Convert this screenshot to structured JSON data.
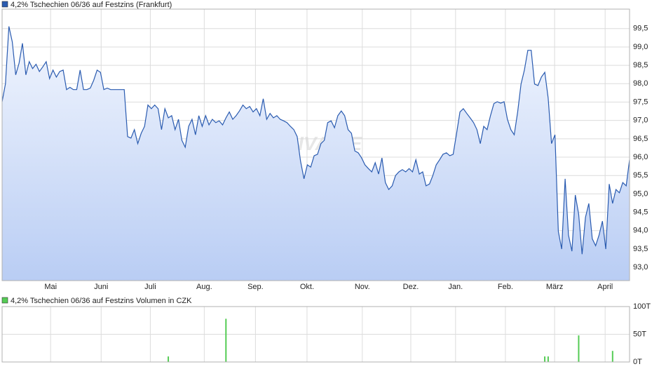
{
  "chart_data": [
    {
      "type": "area",
      "series": [
        {
          "name": "4,2% Tschechien 06/36 auf Festzins (Frankfurt)",
          "color": "#2a5bb0",
          "values": [
            97.51,
            98.0,
            99.56,
            99.14,
            98.24,
            98.56,
            99.1,
            98.24,
            98.6,
            98.41,
            98.53,
            98.33,
            98.46,
            98.6,
            98.14,
            98.37,
            98.18,
            98.33,
            98.37,
            97.84,
            97.9,
            97.84,
            97.84,
            98.37,
            97.84,
            97.84,
            97.88,
            98.09,
            98.37,
            98.31,
            97.84,
            97.88,
            97.84,
            97.84,
            97.84,
            97.84,
            97.84,
            96.56,
            96.52,
            96.75,
            96.37,
            96.65,
            96.84,
            97.42,
            97.32,
            97.42,
            97.32,
            96.75,
            97.32,
            97.07,
            97.13,
            96.75,
            97.03,
            96.46,
            96.27,
            96.84,
            97.03,
            96.61,
            97.13,
            96.84,
            97.13,
            96.88,
            97.03,
            96.94,
            96.99,
            96.88,
            97.07,
            97.23,
            97.03,
            97.13,
            97.26,
            97.42,
            97.32,
            97.38,
            97.23,
            97.32,
            97.13,
            97.59,
            97.03,
            97.19,
            97.07,
            97.13,
            97.03,
            96.99,
            96.94,
            96.84,
            96.75,
            96.56,
            95.89,
            95.41,
            95.79,
            95.73,
            96.04,
            96.08,
            96.37,
            96.46,
            96.94,
            96.99,
            96.8,
            97.13,
            97.26,
            97.13,
            96.75,
            96.65,
            96.17,
            96.12,
            95.98,
            95.79,
            95.69,
            95.6,
            95.85,
            95.54,
            95.98,
            95.31,
            95.12,
            95.22,
            95.5,
            95.6,
            95.66,
            95.6,
            95.69,
            95.6,
            95.93,
            95.54,
            95.6,
            95.22,
            95.27,
            95.5,
            95.79,
            95.93,
            96.08,
            96.12,
            96.04,
            96.08,
            96.65,
            97.23,
            97.32,
            97.19,
            97.07,
            96.94,
            96.75,
            96.37,
            96.84,
            96.75,
            97.13,
            97.46,
            97.51,
            97.47,
            97.51,
            97.03,
            96.75,
            96.61,
            97.23,
            97.99,
            98.37,
            98.91,
            98.91,
            97.99,
            97.95,
            98.18,
            98.31,
            97.61,
            96.37,
            96.61,
            93.98,
            93.5,
            95.41,
            93.88,
            93.44,
            94.97,
            94.45,
            93.36,
            94.36,
            94.74,
            93.78,
            93.59,
            93.88,
            94.26,
            93.5,
            95.27,
            94.74,
            95.12,
            95.03,
            95.31,
            95.22,
            95.93
          ]
        }
      ],
      "watermark": "ARIVA.DE",
      "xlim": [
        0,
        185
      ],
      "xticks": [
        {
          "value": 14.3,
          "label": "Mai"
        },
        {
          "value": 29.2,
          "label": "Juni"
        },
        {
          "value": 43.7,
          "label": "Juli"
        },
        {
          "value": 59.6,
          "label": "Aug."
        },
        {
          "value": 74.7,
          "label": "Sep."
        },
        {
          "value": 89.9,
          "label": "Okt."
        },
        {
          "value": 106.2,
          "label": "Nov."
        },
        {
          "value": 120.5,
          "label": "Dez."
        },
        {
          "value": 133.7,
          "label": "Jan."
        },
        {
          "value": 148.4,
          "label": "Feb."
        },
        {
          "value": 162.9,
          "label": "März"
        },
        {
          "value": 177.8,
          "label": "April"
        }
      ],
      "ylim": [
        92.64,
        100.03
      ],
      "yticks": [
        {
          "value": 93.0,
          "label": "93,0"
        },
        {
          "value": 93.5,
          "label": "93,5"
        },
        {
          "value": 94.0,
          "label": "94,0"
        },
        {
          "value": 94.5,
          "label": "94,5"
        },
        {
          "value": 95.0,
          "label": "95,0"
        },
        {
          "value": 95.5,
          "label": "95,5"
        },
        {
          "value": 96.0,
          "label": "96,0"
        },
        {
          "value": 96.5,
          "label": "96,5"
        },
        {
          "value": 97.0,
          "label": "97,0"
        },
        {
          "value": 97.5,
          "label": "97,5"
        },
        {
          "value": 98.0,
          "label": "98,0"
        },
        {
          "value": 98.5,
          "label": "98,5"
        },
        {
          "value": 99.0,
          "label": "99,0"
        },
        {
          "value": 99.5,
          "label": "99,5"
        }
      ],
      "grid": true
    },
    {
      "type": "bar",
      "series": [
        {
          "name": "4,2% Tschechien 06/36 auf Festzins Volumen in CZK",
          "color": "#55cc55",
          "x": [
            49,
            66,
            160,
            161,
            170,
            180
          ],
          "values": [
            10,
            78,
            10,
            10,
            48,
            20
          ]
        }
      ],
      "xlim": [
        0,
        185
      ],
      "ylim": [
        0,
        100
      ],
      "yticks": [
        {
          "value": 0,
          "label": "0T"
        },
        {
          "value": 50,
          "label": "50T"
        },
        {
          "value": 100,
          "label": "100T"
        }
      ],
      "grid": true
    }
  ]
}
